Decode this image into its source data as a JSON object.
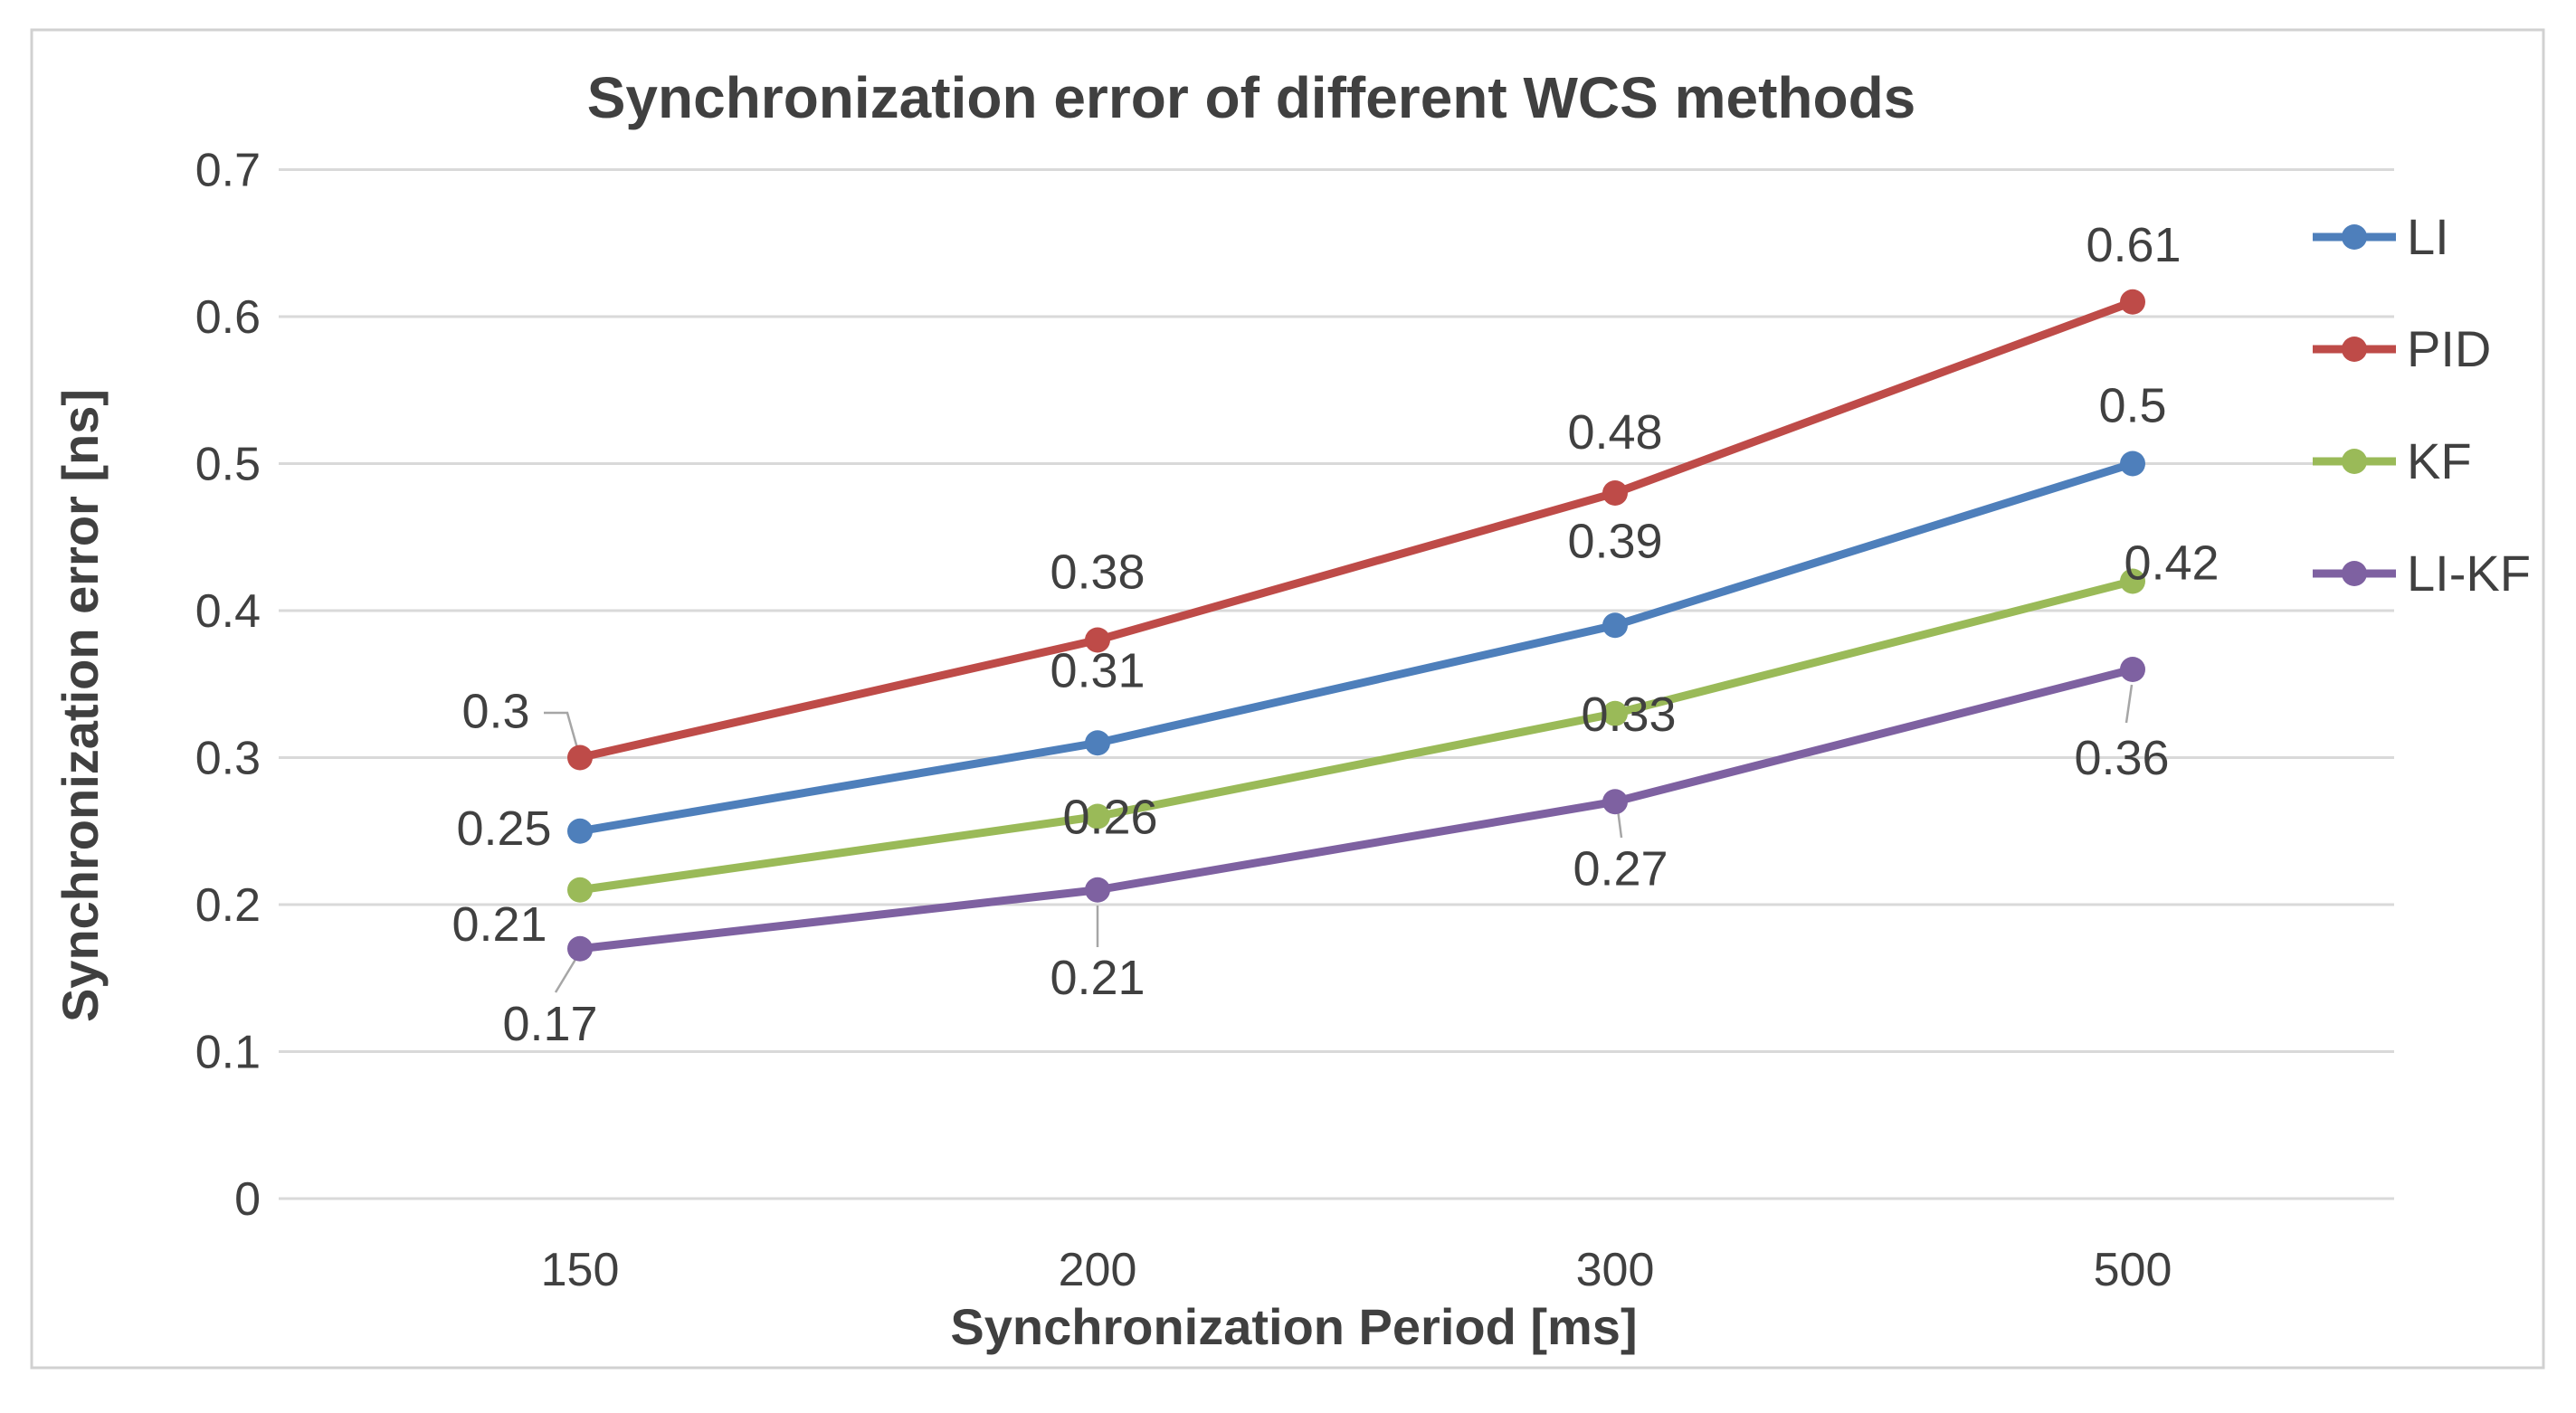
{
  "chart_data": {
    "type": "line",
    "title": "Synchronization error of different WCS methods",
    "xlabel": "Synchronization Period [ms]",
    "ylabel": "Synchronization error [ns]",
    "categories": [
      "150",
      "200",
      "300",
      "500"
    ],
    "x_values_ms": [
      150,
      200,
      300,
      500
    ],
    "y_ticks": [
      "0",
      "0.1",
      "0.2",
      "0.3",
      "0.4",
      "0.5",
      "0.6",
      "0.7"
    ],
    "ylim": [
      0,
      0.7
    ],
    "grid": true,
    "legend_position": "right",
    "series": [
      {
        "name": "LI",
        "color": "#4E7FBB",
        "values": [
          0.25,
          0.31,
          0.39,
          0.5
        ],
        "data_labels": [
          "0.25",
          "0.31",
          "0.39",
          "0.5"
        ]
      },
      {
        "name": "PID",
        "color": "#BE4B48",
        "values": [
          0.3,
          0.38,
          0.48,
          0.61
        ],
        "data_labels": [
          "0.3",
          "0.38",
          "0.48",
          "0.61"
        ]
      },
      {
        "name": "KF",
        "color": "#9ABA58",
        "values": [
          0.21,
          0.26,
          0.33,
          0.42
        ],
        "data_labels": [
          "0.21",
          "0.26",
          "0.33",
          "0.42"
        ]
      },
      {
        "name": "LI-KF",
        "color": "#7E61A1",
        "values": [
          0.17,
          0.21,
          0.27,
          0.36
        ],
        "data_labels": [
          "0.17",
          "0.21",
          "0.27",
          "0.36"
        ]
      }
    ],
    "colors": {
      "grid": "#D9D9D9",
      "text": "#404040",
      "frame": "#D1D1D1",
      "leader": "#A6A6A6",
      "background": "#FFFFFF"
    }
  }
}
